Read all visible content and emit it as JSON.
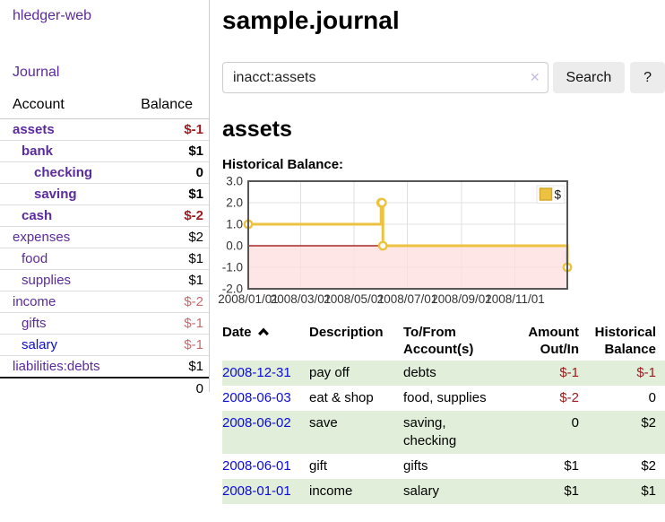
{
  "brand": "hledger-web",
  "nav": {
    "journal": "Journal"
  },
  "sidebar": {
    "headers": {
      "account": "Account",
      "balance": "Balance"
    },
    "accounts": [
      {
        "name": "assets",
        "indent": 1,
        "bold": true,
        "link_color": "purple",
        "balance": "$-1",
        "balance_style": "neg-strong"
      },
      {
        "name": "bank",
        "indent": 2,
        "bold": true,
        "link_color": "purple",
        "balance": "$1",
        "balance_style": "normal"
      },
      {
        "name": "checking",
        "indent": 3,
        "bold": true,
        "link_color": "purple",
        "balance": "0",
        "balance_style": "normal"
      },
      {
        "name": "saving",
        "indent": 3,
        "bold": true,
        "link_color": "purple",
        "balance": "$1",
        "balance_style": "normal"
      },
      {
        "name": "cash",
        "indent": 2,
        "bold": true,
        "link_color": "purple",
        "balance": "$-2",
        "balance_style": "neg-strong"
      },
      {
        "name": "expenses",
        "indent": 1,
        "bold": false,
        "link_color": "purple",
        "balance": "$2",
        "balance_style": "normal"
      },
      {
        "name": "food",
        "indent": 2,
        "bold": false,
        "link_color": "purple",
        "balance": "$1",
        "balance_style": "normal"
      },
      {
        "name": "supplies",
        "indent": 2,
        "bold": false,
        "link_color": "purple",
        "balance": "$1",
        "balance_style": "normal"
      },
      {
        "name": "income",
        "indent": 1,
        "bold": false,
        "link_color": "purple",
        "balance": "$-2",
        "balance_style": "neg-light"
      },
      {
        "name": "gifts",
        "indent": 2,
        "bold": false,
        "link_color": "purple",
        "balance": "$-1",
        "balance_style": "neg-light"
      },
      {
        "name": "salary",
        "indent": 2,
        "bold": false,
        "link_color": "blue",
        "balance": "$-1",
        "balance_style": "neg-light"
      },
      {
        "name": "liabilities:debts",
        "indent": 1,
        "bold": false,
        "link_color": "purple",
        "balance": "$1",
        "balance_style": "normal"
      }
    ],
    "total": "0"
  },
  "main": {
    "title": "sample.journal",
    "search": {
      "value": "inacct:assets",
      "clear_icon": "✕",
      "search_button": "Search",
      "help_button": "?"
    },
    "account_heading": "assets",
    "chart_heading": "Historical Balance:"
  },
  "chart_data": {
    "type": "line",
    "step": true,
    "title": "Historical Balance",
    "legend_label": "$",
    "legend_position": "top-right",
    "series": [
      {
        "name": "$",
        "color": "#edc240",
        "points": [
          [
            "2008-01-01",
            1
          ],
          [
            "2008-06-01",
            2
          ],
          [
            "2008-06-02",
            2
          ],
          [
            "2008-06-03",
            0
          ],
          [
            "2008-12-31",
            -1
          ]
        ]
      }
    ],
    "x_ticks": [
      "2008/01/01",
      "2008/03/01",
      "2008/05/01",
      "2008/07/01",
      "2008/09/01",
      "2008/11/01"
    ],
    "y_ticks": [
      "3.0",
      "2.0",
      "1.0",
      "0.0",
      "-1.0",
      "-2.0"
    ],
    "ylim": [
      -2,
      3
    ],
    "x_start": "2008-01-01",
    "x_range_days": 365,
    "grid": true,
    "negative_fill": "#ffdddd",
    "zero_line_color": "#990000"
  },
  "register": {
    "headers": {
      "date": "Date",
      "description": "Description",
      "accounts": "To/From Account(s)",
      "amount": "Amount Out/In",
      "balance": "Historical Balance"
    },
    "sort": {
      "column": "date",
      "direction": "ascending"
    },
    "rows": [
      {
        "date": "2008-12-31",
        "description": "pay off",
        "accounts": "debts",
        "amount": "$-1",
        "amount_style": "neg",
        "balance": "$-1",
        "balance_style": "neg",
        "highlight": true
      },
      {
        "date": "2008-06-03",
        "description": "eat & shop",
        "accounts": "food, supplies",
        "amount": "$-2",
        "amount_style": "neg",
        "balance": "0",
        "balance_style": "normal",
        "highlight": false
      },
      {
        "date": "2008-06-02",
        "description": "save",
        "accounts": "saving, checking",
        "amount": "0",
        "amount_style": "normal",
        "balance": "$2",
        "balance_style": "normal",
        "highlight": true
      },
      {
        "date": "2008-06-01",
        "description": "gift",
        "accounts": "gifts",
        "amount": "$1",
        "amount_style": "normal",
        "balance": "$2",
        "balance_style": "normal",
        "highlight": false
      },
      {
        "date": "2008-01-01",
        "description": "income",
        "accounts": "salary",
        "amount": "$1",
        "amount_style": "normal",
        "balance": "$1",
        "balance_style": "normal",
        "highlight": true
      }
    ]
  }
}
